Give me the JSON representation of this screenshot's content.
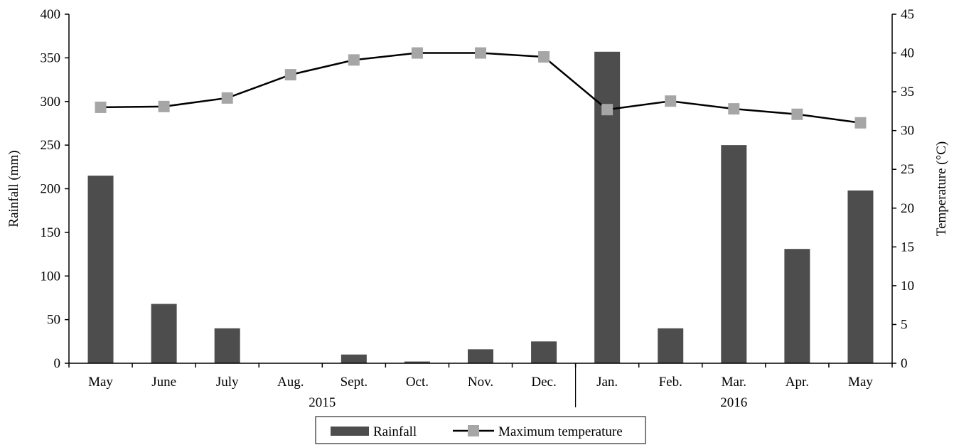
{
  "chart_data": {
    "type": "bar+line",
    "categories": [
      "May",
      "June",
      "July",
      "Aug.",
      "Sept.",
      "Oct.",
      "Nov.",
      "Dec.",
      "Jan.",
      "Feb.",
      "Mar.",
      "Apr.",
      "May"
    ],
    "groups": [
      {
        "label": "2015",
        "from": 0,
        "to": 7
      },
      {
        "label": "2016",
        "from": 8,
        "to": 12
      }
    ],
    "series": [
      {
        "name": "Rainfall",
        "type": "bar",
        "axis": "left",
        "color": "#4d4d4d",
        "values": [
          215,
          68,
          40,
          0,
          10,
          2,
          16,
          25,
          357,
          40,
          250,
          131,
          198
        ]
      },
      {
        "name": "Maximum temperature",
        "type": "line",
        "axis": "right",
        "color": "#000000",
        "marker_color": "#a6a6a6",
        "values": [
          33.0,
          33.1,
          34.2,
          37.2,
          39.1,
          40.0,
          40.0,
          39.5,
          32.7,
          33.8,
          32.8,
          32.1,
          31.0
        ]
      }
    ],
    "y_left": {
      "label": "Rainfall (mm)",
      "lim": [
        0,
        400
      ],
      "ticks": [
        "0",
        "50",
        "100",
        "150",
        "200",
        "250",
        "300",
        "350",
        "400"
      ]
    },
    "y_right": {
      "label": "Temperature (°C)",
      "lim": [
        0,
        45
      ],
      "ticks": [
        "0",
        "5",
        "10",
        "15",
        "20",
        "25",
        "30",
        "35",
        "40",
        "45"
      ]
    },
    "grid": false,
    "legend_position": "bottom-center"
  }
}
